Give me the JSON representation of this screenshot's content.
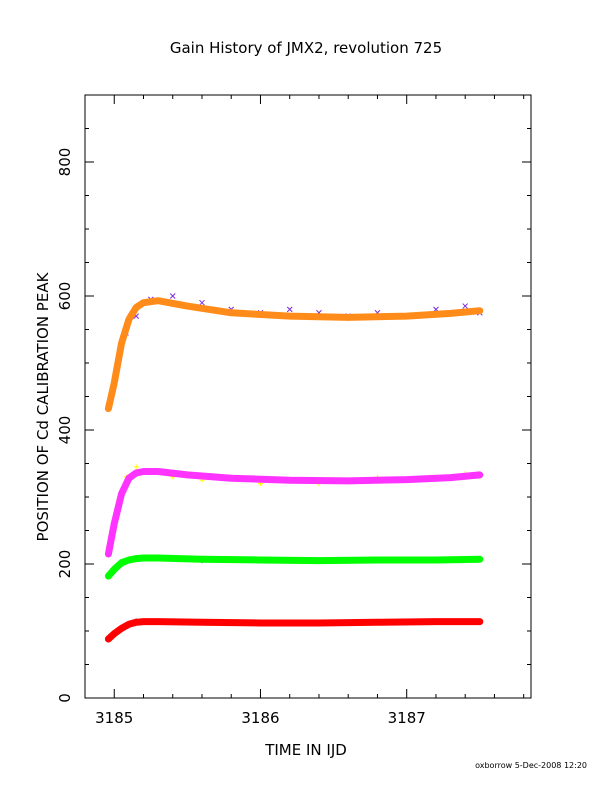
{
  "chart_data": {
    "type": "scatter",
    "title": "Gain History of JMX2, revolution 725",
    "xlabel": "TIME IN IJD",
    "ylabel": "POSITION OF Cd CALIBRATION PEAK",
    "xlim": [
      3184.8,
      3187.85
    ],
    "ylim": [
      0,
      900
    ],
    "xticks": [
      3185,
      3186,
      3187
    ],
    "yticks": [
      0,
      200,
      400,
      600,
      800
    ],
    "xtick_labels": [
      "3185",
      "3186",
      "3187"
    ],
    "ytick_labels": [
      "0",
      "200",
      "400",
      "600",
      "800"
    ],
    "grid": false,
    "series": [
      {
        "kind": "points",
        "marker": "x",
        "color": "#7b2be2",
        "x": [
          3184.96,
          3185.03,
          3185.08,
          3185.15,
          3185.25,
          3185.4,
          3185.6,
          3185.8,
          3186.0,
          3186.2,
          3186.4,
          3186.6,
          3186.8,
          3187.0,
          3187.2,
          3187.4,
          3187.5
        ],
        "values": [
          435,
          505,
          545,
          570,
          595,
          600,
          590,
          580,
          575,
          580,
          575,
          570,
          575,
          570,
          580,
          585,
          575
        ]
      },
      {
        "kind": "line",
        "color": "#ff8c1a",
        "x": [
          3184.96,
          3185.0,
          3185.05,
          3185.1,
          3185.15,
          3185.2,
          3185.3,
          3185.5,
          3185.8,
          3186.2,
          3186.6,
          3187.0,
          3187.3,
          3187.5
        ],
        "values": [
          432,
          470,
          530,
          565,
          583,
          590,
          593,
          585,
          575,
          570,
          568,
          570,
          574,
          578
        ]
      },
      {
        "kind": "points",
        "marker": "+",
        "color": "#ffff00",
        "x": [
          3184.96,
          3185.03,
          3185.08,
          3185.15,
          3185.25,
          3185.4,
          3185.6,
          3185.8,
          3186.0,
          3186.2,
          3186.4,
          3186.6,
          3186.8,
          3187.0,
          3187.2,
          3187.4,
          3187.5
        ],
        "values": [
          225,
          295,
          330,
          345,
          340,
          330,
          325,
          330,
          320,
          325,
          320,
          325,
          330,
          325,
          330,
          335,
          330
        ]
      },
      {
        "kind": "line",
        "color": "#ff33ff",
        "x": [
          3184.96,
          3185.0,
          3185.05,
          3185.1,
          3185.15,
          3185.2,
          3185.3,
          3185.5,
          3185.8,
          3186.2,
          3186.6,
          3187.0,
          3187.3,
          3187.5
        ],
        "values": [
          215,
          260,
          305,
          328,
          336,
          338,
          338,
          333,
          328,
          325,
          324,
          326,
          329,
          333
        ]
      },
      {
        "kind": "points",
        "marker": "+",
        "color": "#1a1aa6",
        "x": [
          3184.96,
          3185.05,
          3185.15,
          3185.3,
          3185.6,
          3186.0,
          3186.4,
          3186.8,
          3187.2,
          3187.5
        ],
        "values": [
          182,
          200,
          208,
          208,
          205,
          205,
          205,
          206,
          206,
          207
        ]
      },
      {
        "kind": "line",
        "color": "#00ff00",
        "x": [
          3184.96,
          3185.0,
          3185.05,
          3185.1,
          3185.15,
          3185.2,
          3185.3,
          3185.6,
          3186.0,
          3186.4,
          3186.8,
          3187.2,
          3187.5
        ],
        "values": [
          182,
          192,
          202,
          206,
          208,
          209,
          209,
          207,
          206,
          205,
          206,
          206,
          207
        ]
      },
      {
        "kind": "points",
        "marker": "+",
        "color": "#000000",
        "x": [
          3184.96,
          3185.05,
          3185.15,
          3185.3,
          3185.6,
          3186.0,
          3186.4,
          3186.8,
          3187.2,
          3187.5
        ],
        "values": [
          88,
          105,
          115,
          115,
          112,
          112,
          112,
          114,
          115,
          114
        ]
      },
      {
        "kind": "line",
        "color": "#ff0000",
        "x": [
          3184.96,
          3185.0,
          3185.05,
          3185.1,
          3185.15,
          3185.2,
          3185.3,
          3185.6,
          3186.0,
          3186.4,
          3186.8,
          3187.2,
          3187.5
        ],
        "values": [
          88,
          96,
          104,
          110,
          113,
          114,
          114,
          113,
          112,
          112,
          113,
          114,
          114
        ]
      }
    ]
  },
  "footer": "oxborrow  5-Dec-2008 12:20"
}
